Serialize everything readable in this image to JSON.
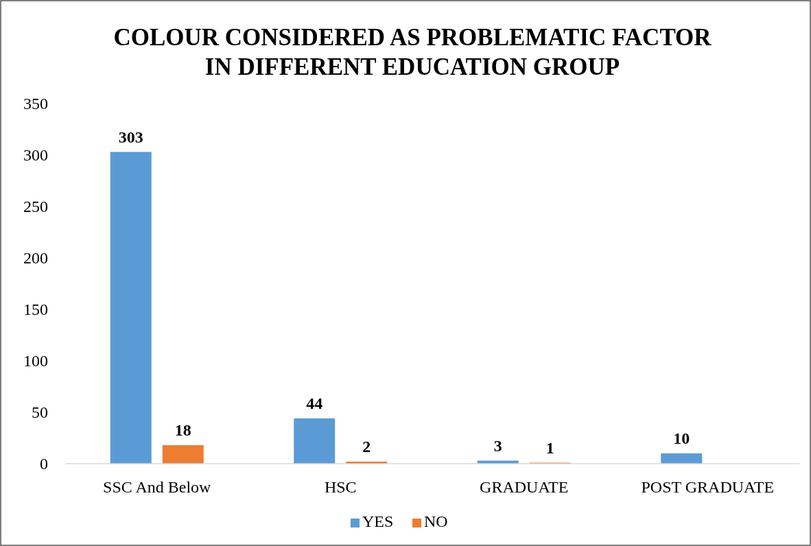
{
  "chart_data": {
    "type": "bar",
    "title": "COLOUR CONSIDERED AS PROBLEMATIC FACTOR\nIN DIFFERENT EDUCATION GROUP",
    "categories": [
      "SSC And Below",
      "HSC",
      "GRADUATE",
      "POST GRADUATE"
    ],
    "series": [
      {
        "name": "YES",
        "color": "#5b9bd5",
        "values": [
          303,
          44,
          3,
          10
        ]
      },
      {
        "name": "NO",
        "color": "#ed7d31",
        "values": [
          18,
          2,
          1,
          null
        ]
      }
    ],
    "ylim": [
      0,
      350
    ],
    "yticks": [
      0,
      50,
      100,
      150,
      200,
      250,
      300,
      350
    ],
    "grid": false,
    "legend": "bottom",
    "data_labels": true
  }
}
